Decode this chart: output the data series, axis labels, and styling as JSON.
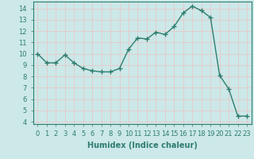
{
  "x": [
    0,
    1,
    2,
    3,
    4,
    5,
    6,
    7,
    8,
    9,
    10,
    11,
    12,
    13,
    14,
    15,
    16,
    17,
    18,
    19,
    20,
    21,
    22,
    23
  ],
  "y": [
    10.0,
    9.2,
    9.2,
    9.9,
    9.2,
    8.7,
    8.5,
    8.4,
    8.4,
    8.7,
    10.4,
    11.4,
    11.3,
    11.9,
    11.7,
    12.4,
    13.6,
    14.2,
    13.8,
    13.2,
    8.1,
    6.9,
    4.5,
    4.5
  ],
  "xlabel": "Humidex (Indice chaleur)",
  "xlim": [
    -0.5,
    23.5
  ],
  "ylim": [
    3.8,
    14.6
  ],
  "yticks": [
    4,
    5,
    6,
    7,
    8,
    9,
    10,
    11,
    12,
    13,
    14
  ],
  "xticks": [
    0,
    1,
    2,
    3,
    4,
    5,
    6,
    7,
    8,
    9,
    10,
    11,
    12,
    13,
    14,
    15,
    16,
    17,
    18,
    19,
    20,
    21,
    22,
    23
  ],
  "line_color": "#2e7d6e",
  "marker": "+",
  "marker_size": 4,
  "bg_color": "#cce8e8",
  "grid_color": "#e8c8c8",
  "tick_fontsize": 6,
  "xlabel_fontsize": 7
}
